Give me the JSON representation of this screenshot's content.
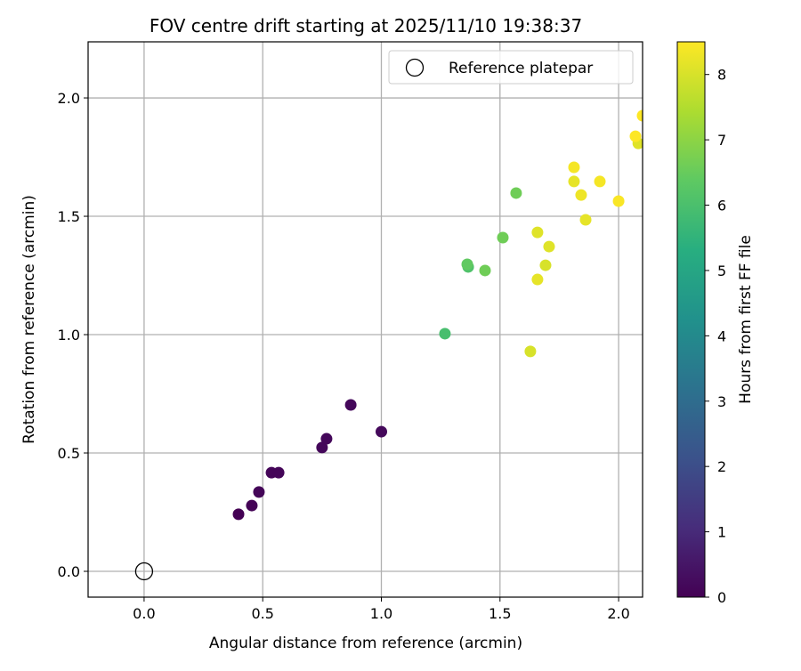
{
  "chart_data": {
    "type": "scatter",
    "title": "FOV centre drift starting at 2025/11/10 19:38:37",
    "xlabel": "Angular distance from reference (arcmin)",
    "ylabel": "Rotation from reference (arcmin)",
    "xlim": [
      -0.236,
      2.101
    ],
    "ylim": [
      -0.109,
      2.237
    ],
    "xticks": [
      "0.0",
      "0.5",
      "1.0",
      "1.5",
      "2.0"
    ],
    "xtick_values": [
      0,
      0.5,
      1,
      1.5,
      2
    ],
    "yticks": [
      "0.0",
      "0.5",
      "1.0",
      "1.5",
      "2.0"
    ],
    "ytick_values": [
      0,
      0.5,
      1,
      1.5,
      2
    ],
    "grid": true,
    "legend": {
      "label": "Reference platepar",
      "placement": "top-right"
    },
    "reference_point": {
      "x": 0,
      "y": 0
    },
    "colorbar": {
      "label": "Hours from first FF file",
      "range": [
        0,
        8.5
      ],
      "ticks": [
        "0",
        "1",
        "2",
        "3",
        "4",
        "5",
        "6",
        "7",
        "8"
      ],
      "tick_values": [
        0,
        1,
        2,
        3,
        4,
        5,
        6,
        7,
        8
      ],
      "colormap": "viridis"
    },
    "points": [
      {
        "x": 0.398,
        "y": 0.241,
        "h": 0.0
      },
      {
        "x": 0.454,
        "y": 0.278,
        "h": 0.05
      },
      {
        "x": 0.484,
        "y": 0.335,
        "h": 0.1
      },
      {
        "x": 0.537,
        "y": 0.417,
        "h": 0.1
      },
      {
        "x": 0.567,
        "y": 0.417,
        "h": 0.1
      },
      {
        "x": 0.75,
        "y": 0.523,
        "h": 0.15
      },
      {
        "x": 0.769,
        "y": 0.56,
        "h": 0.15
      },
      {
        "x": 0.871,
        "y": 0.703,
        "h": 0.15
      },
      {
        "x": 1.0,
        "y": 0.59,
        "h": 0.2
      },
      {
        "x": 1.268,
        "y": 1.004,
        "h": 5.95
      },
      {
        "x": 1.366,
        "y": 1.286,
        "h": 6.1
      },
      {
        "x": 1.362,
        "y": 1.297,
        "h": 6.4
      },
      {
        "x": 1.437,
        "y": 1.271,
        "h": 6.6
      },
      {
        "x": 1.512,
        "y": 1.41,
        "h": 6.6
      },
      {
        "x": 1.568,
        "y": 1.598,
        "h": 6.6
      },
      {
        "x": 1.628,
        "y": 0.929,
        "h": 8.0
      },
      {
        "x": 1.658,
        "y": 1.432,
        "h": 8.1
      },
      {
        "x": 1.658,
        "y": 1.233,
        "h": 8.2
      },
      {
        "x": 1.692,
        "y": 1.293,
        "h": 8.0
      },
      {
        "x": 1.707,
        "y": 1.372,
        "h": 8.1
      },
      {
        "x": 1.812,
        "y": 1.707,
        "h": 8.4
      },
      {
        "x": 1.812,
        "y": 1.647,
        "h": 8.2
      },
      {
        "x": 1.842,
        "y": 1.59,
        "h": 8.3
      },
      {
        "x": 1.861,
        "y": 1.485,
        "h": 8.2
      },
      {
        "x": 1.921,
        "y": 1.647,
        "h": 8.4
      },
      {
        "x": 2.0,
        "y": 1.564,
        "h": 8.45
      },
      {
        "x": 2.083,
        "y": 1.808,
        "h": 8.1
      },
      {
        "x": 2.071,
        "y": 1.838,
        "h": 8.5
      },
      {
        "x": 2.101,
        "y": 1.925,
        "h": 8.5
      }
    ]
  }
}
